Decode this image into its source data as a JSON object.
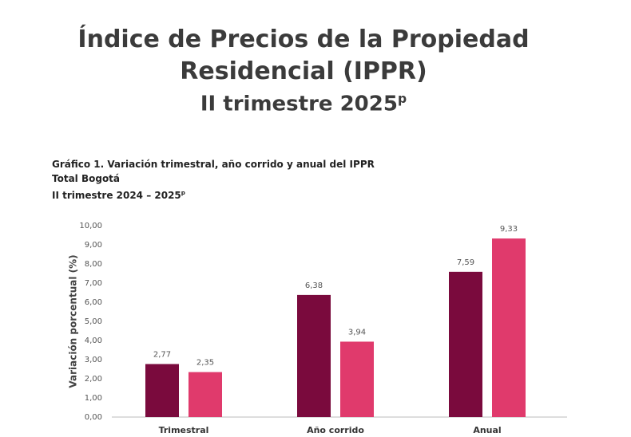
{
  "header": {
    "title_lines": [
      "Índice de Precios de la Propiedad",
      "Residencial (IPPR)"
    ],
    "period": "II trimestre 2025",
    "period_superscript": "p"
  },
  "chart_data": {
    "type": "bar",
    "subtitle_lines": [
      "Gráfico 1. Variación trimestral, año corrido y anual del IPPR",
      "Total Bogotá"
    ],
    "period": "II trimestre 2024 – 2025",
    "period_superscript": "p",
    "y_label": "Variación porcentual (%)",
    "categories": [
      "Trimestral",
      "Año corrido",
      "Anual"
    ],
    "series": [
      {
        "color": "#7a0a3d",
        "values": [
          2.77,
          6.38,
          7.59
        ],
        "value_labels": [
          "2,77",
          "6,38",
          "7,59"
        ]
      },
      {
        "color": "#e03a6c",
        "values": [
          2.35,
          3.94,
          9.33
        ],
        "value_labels": [
          "2,35",
          "3,94",
          "9,33"
        ]
      }
    ],
    "ylim": [
      0,
      10
    ],
    "yticks": [
      {
        "value": 0,
        "label": "0,00"
      },
      {
        "value": 1,
        "label": "1,00"
      },
      {
        "value": 2,
        "label": "2,00"
      },
      {
        "value": 3,
        "label": "3,00"
      },
      {
        "value": 4,
        "label": "4,00"
      },
      {
        "value": 5,
        "label": "5,00"
      },
      {
        "value": 6,
        "label": "6,00"
      },
      {
        "value": 7,
        "label": "7,00"
      },
      {
        "value": 8,
        "label": "8,00"
      },
      {
        "value": 9,
        "label": "9,00"
      },
      {
        "value": 10,
        "label": "10,00"
      }
    ]
  }
}
